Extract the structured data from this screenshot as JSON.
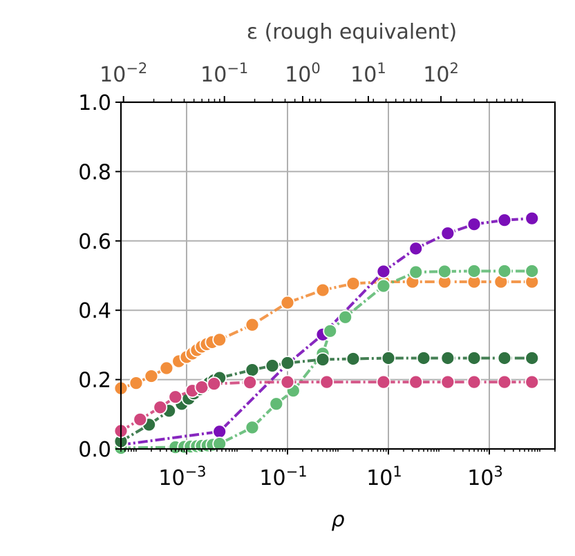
{
  "chart_data": {
    "type": "line",
    "xlabel": "ρ",
    "x_scale": "log",
    "xlim": [
      5e-05,
      20000
    ],
    "ylim": [
      0,
      1
    ],
    "grid": true,
    "y_ticks": [
      "0.0",
      "0.2",
      "0.4",
      "0.6",
      "0.8",
      "1.0"
    ],
    "x_ticks": [
      {
        "value": 0.001,
        "base": "10",
        "exp": "−3"
      },
      {
        "value": 0.1,
        "base": "10",
        "exp": "−1"
      },
      {
        "value": 10,
        "base": "10",
        "exp": "1"
      },
      {
        "value": 1000,
        "base": "10",
        "exp": "3"
      }
    ],
    "top_axis": {
      "label": "ε (rough equivalent)",
      "ticks": [
        {
          "rho": 5.62e-05,
          "base": "10",
          "exp": "−2"
        },
        {
          "rho": 0.00562,
          "base": "10",
          "exp": "−1"
        },
        {
          "rho": 0.2,
          "base": "10",
          "exp": "0"
        },
        {
          "rho": 4.0,
          "base": "10",
          "exp": "1"
        },
        {
          "rho": 110,
          "base": "10",
          "exp": "2"
        }
      ]
    },
    "series": [
      {
        "color": "#f28e3b",
        "x": [
          5e-05,
          0.0001,
          0.0002,
          0.0004,
          0.0007,
          0.001,
          0.0013,
          0.0016,
          0.002,
          0.0025,
          0.0032,
          0.0045,
          0.02,
          0.1,
          0.5,
          2,
          8,
          30,
          130,
          500,
          1700,
          7000
        ],
        "y": [
          0.175,
          0.19,
          0.21,
          0.233,
          0.253,
          0.265,
          0.275,
          0.285,
          0.295,
          0.302,
          0.308,
          0.315,
          0.358,
          0.422,
          0.458,
          0.477,
          0.482,
          0.482,
          0.482,
          0.482,
          0.482,
          0.482
        ]
      },
      {
        "color": "#7a0fb8",
        "x": [
          5e-05,
          0.0045,
          0.1,
          0.5,
          8,
          35,
          150,
          500,
          2000,
          7000
        ],
        "y": [
          0.012,
          0.05,
          0.245,
          0.33,
          0.512,
          0.578,
          0.622,
          0.648,
          0.66,
          0.665
        ]
      },
      {
        "color": "#62bb75",
        "x": [
          5e-05,
          0.0006,
          0.0009,
          0.0012,
          0.0016,
          0.002,
          0.0026,
          0.0033,
          0.0045,
          0.02,
          0.06,
          0.13,
          0.5,
          0.7,
          1.4,
          8,
          35,
          130,
          500,
          2000,
          7000
        ],
        "y": [
          0.003,
          0.005,
          0.006,
          0.007,
          0.008,
          0.009,
          0.01,
          0.012,
          0.015,
          0.062,
          0.13,
          0.168,
          0.275,
          0.34,
          0.38,
          0.47,
          0.51,
          0.512,
          0.513,
          0.513,
          0.513
        ]
      },
      {
        "color": "#2f7140",
        "x": [
          5e-05,
          0.00018,
          0.00045,
          0.0008,
          0.0011,
          0.0014,
          0.0018,
          0.0023,
          0.0028,
          0.0035,
          0.0045,
          0.02,
          0.05,
          0.1,
          0.5,
          2,
          10,
          50,
          150,
          500,
          2000,
          7000
        ],
        "y": [
          0.022,
          0.07,
          0.11,
          0.13,
          0.145,
          0.16,
          0.172,
          0.182,
          0.19,
          0.198,
          0.205,
          0.228,
          0.24,
          0.248,
          0.258,
          0.26,
          0.262,
          0.262,
          0.262,
          0.262,
          0.262,
          0.262
        ]
      },
      {
        "color": "#d0467c",
        "x": [
          5e-05,
          0.00012,
          0.0003,
          0.0006,
          0.0013,
          0.002,
          0.0035,
          0.018,
          0.1,
          0.6,
          8,
          35,
          150,
          500,
          2000,
          7000
        ],
        "y": [
          0.052,
          0.085,
          0.12,
          0.15,
          0.168,
          0.178,
          0.188,
          0.192,
          0.193,
          0.193,
          0.193,
          0.193,
          0.193,
          0.193,
          0.193,
          0.193
        ]
      }
    ]
  }
}
